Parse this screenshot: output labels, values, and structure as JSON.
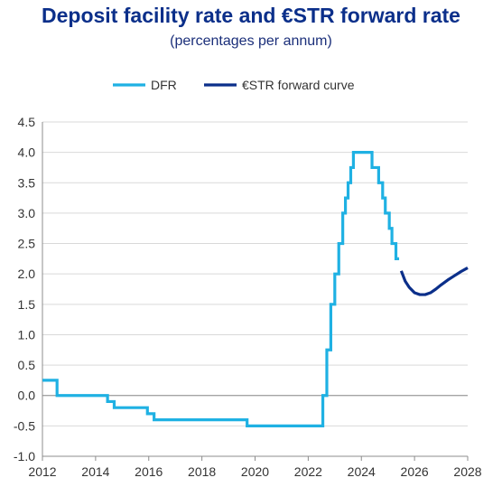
{
  "chart_data": {
    "type": "line",
    "title": "Deposit facility rate and €STR forward rate",
    "subtitle": "(percentages per annum)",
    "xlim": [
      2012,
      2028
    ],
    "ylim": [
      -1.0,
      4.5
    ],
    "x_ticks": [
      2012,
      2014,
      2016,
      2018,
      2020,
      2022,
      2024,
      2026,
      2028
    ],
    "y_ticks": [
      -1.0,
      -0.5,
      0.0,
      0.5,
      1.0,
      1.5,
      2.0,
      2.5,
      3.0,
      3.5,
      4.0,
      4.5
    ],
    "x_tick_labels": [
      "2012",
      "2014",
      "2016",
      "2018",
      "2020",
      "2022",
      "2024",
      "2026",
      "2028"
    ],
    "y_tick_labels": [
      "-1.0",
      "-0.5",
      "0.0",
      "0.5",
      "1.0",
      "1.5",
      "2.0",
      "2.5",
      "3.0",
      "3.5",
      "4.0",
      "4.5"
    ],
    "grid": "horizontal",
    "legend_position": "top-center",
    "series": [
      {
        "name": "DFR",
        "color": "#1fb1e3",
        "step": true,
        "points": [
          [
            2012.0,
            0.25
          ],
          [
            2012.55,
            0.25
          ],
          [
            2012.55,
            0.0
          ],
          [
            2014.45,
            0.0
          ],
          [
            2014.45,
            -0.1
          ],
          [
            2014.7,
            -0.1
          ],
          [
            2014.7,
            -0.2
          ],
          [
            2015.95,
            -0.2
          ],
          [
            2015.95,
            -0.3
          ],
          [
            2016.2,
            -0.3
          ],
          [
            2016.2,
            -0.4
          ],
          [
            2019.7,
            -0.4
          ],
          [
            2019.7,
            -0.5
          ],
          [
            2022.55,
            -0.5
          ],
          [
            2022.55,
            0.0
          ],
          [
            2022.7,
            0.0
          ],
          [
            2022.7,
            0.75
          ],
          [
            2022.85,
            0.75
          ],
          [
            2022.85,
            1.5
          ],
          [
            2023.0,
            1.5
          ],
          [
            2023.0,
            2.0
          ],
          [
            2023.15,
            2.0
          ],
          [
            2023.15,
            2.5
          ],
          [
            2023.3,
            2.5
          ],
          [
            2023.3,
            3.0
          ],
          [
            2023.4,
            3.0
          ],
          [
            2023.4,
            3.25
          ],
          [
            2023.5,
            3.25
          ],
          [
            2023.5,
            3.5
          ],
          [
            2023.6,
            3.5
          ],
          [
            2023.6,
            3.75
          ],
          [
            2023.7,
            3.75
          ],
          [
            2023.7,
            4.0
          ],
          [
            2024.4,
            4.0
          ],
          [
            2024.4,
            3.75
          ],
          [
            2024.65,
            3.75
          ],
          [
            2024.65,
            3.5
          ],
          [
            2024.8,
            3.5
          ],
          [
            2024.8,
            3.25
          ],
          [
            2024.9,
            3.25
          ],
          [
            2024.9,
            3.0
          ],
          [
            2025.05,
            3.0
          ],
          [
            2025.05,
            2.75
          ],
          [
            2025.15,
            2.75
          ],
          [
            2025.15,
            2.5
          ],
          [
            2025.3,
            2.5
          ],
          [
            2025.3,
            2.25
          ],
          [
            2025.42,
            2.25
          ]
        ]
      },
      {
        "name": "€STR forward curve",
        "color": "#0b2f8a",
        "step": false,
        "points": [
          [
            2025.5,
            2.05
          ],
          [
            2025.65,
            1.88
          ],
          [
            2025.8,
            1.78
          ],
          [
            2026.0,
            1.69
          ],
          [
            2026.2,
            1.66
          ],
          [
            2026.4,
            1.66
          ],
          [
            2026.6,
            1.69
          ],
          [
            2026.8,
            1.75
          ],
          [
            2027.0,
            1.82
          ],
          [
            2027.25,
            1.9
          ],
          [
            2027.5,
            1.97
          ],
          [
            2027.75,
            2.04
          ],
          [
            2028.0,
            2.1
          ]
        ]
      }
    ]
  }
}
